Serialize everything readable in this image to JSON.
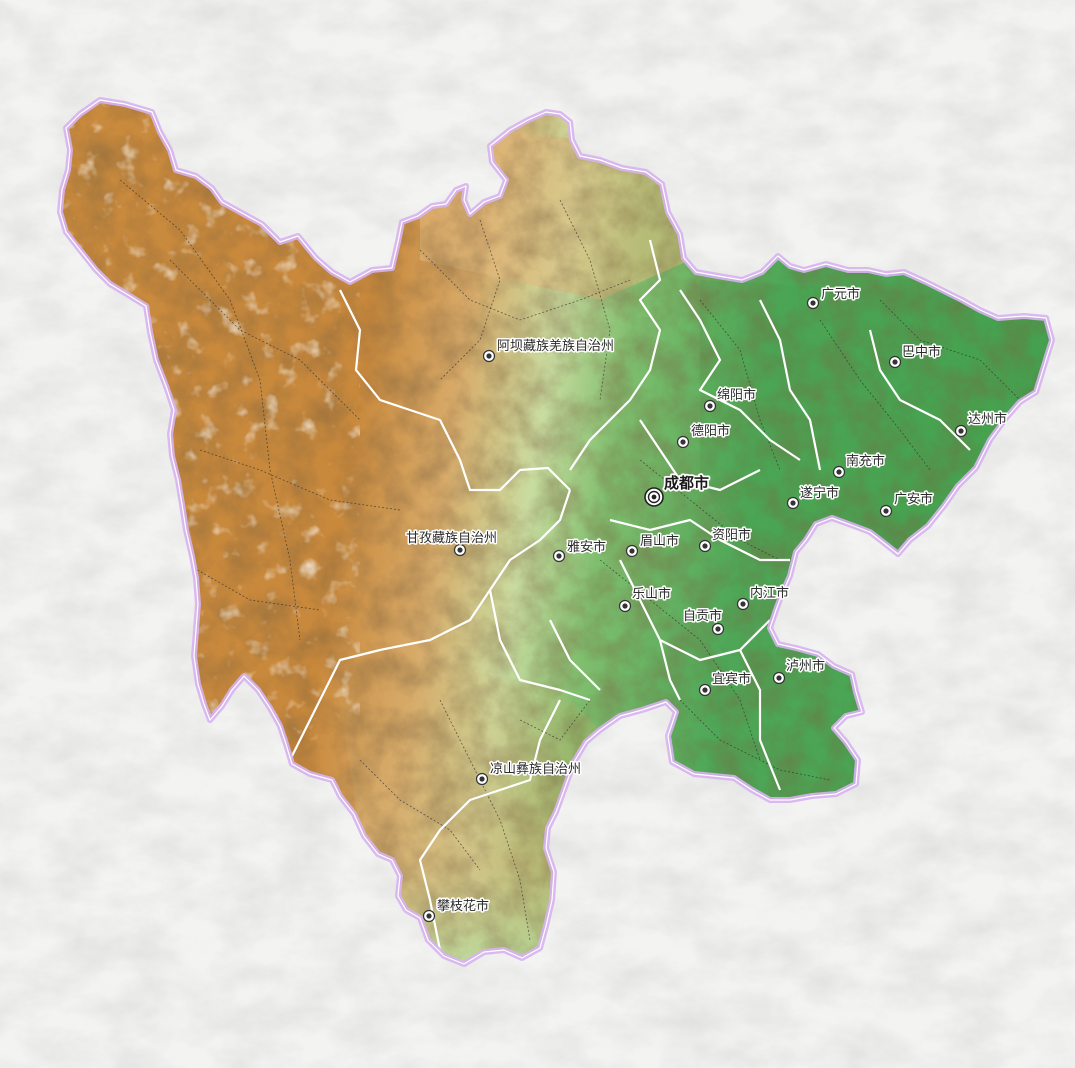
{
  "map": {
    "colors": {
      "background": "#f3f3f2",
      "highland": "#c98a3e",
      "plateau": "#d9a25c",
      "transition": "#b8d79a",
      "basin": "#5aae5c",
      "basin_dark": "#3f9a48",
      "province_border": "#d9b6ef",
      "prefecture_border": "#ffffff",
      "county_border": "#333333"
    },
    "capital": {
      "name": "成都市"
    },
    "cities": [
      {
        "id": "guangyuan",
        "name": "广元市"
      },
      {
        "id": "bazhong",
        "name": "巴中市"
      },
      {
        "id": "aba",
        "name": "阿坝藏族羌族自治州"
      },
      {
        "id": "mianyang",
        "name": "绵阳市"
      },
      {
        "id": "dazhou",
        "name": "达州市"
      },
      {
        "id": "deyang",
        "name": "德阳市"
      },
      {
        "id": "nanchong",
        "name": "南充市"
      },
      {
        "id": "suining",
        "name": "遂宁市"
      },
      {
        "id": "guangan",
        "name": "广安市"
      },
      {
        "id": "ganzi",
        "name": "甘孜藏族自治州"
      },
      {
        "id": "yaan",
        "name": "雅安市"
      },
      {
        "id": "meishan",
        "name": "眉山市"
      },
      {
        "id": "ziyang",
        "name": "资阳市"
      },
      {
        "id": "leshan",
        "name": "乐山市"
      },
      {
        "id": "neijiang",
        "name": "内江市"
      },
      {
        "id": "zigong",
        "name": "自贡市"
      },
      {
        "id": "luzhou",
        "name": "泸州市"
      },
      {
        "id": "yibin",
        "name": "宜宾市"
      },
      {
        "id": "liangshan",
        "name": "凉山彝族自治州"
      },
      {
        "id": "panzhihua",
        "name": "攀枝花市"
      }
    ]
  }
}
